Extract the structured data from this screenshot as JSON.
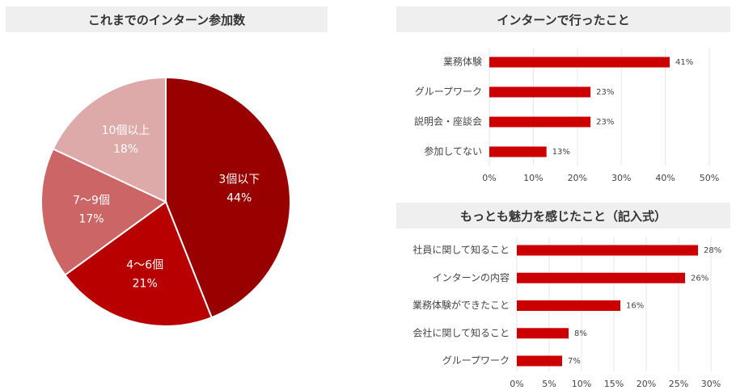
{
  "chart_data": [
    {
      "type": "pie",
      "title": "これまでのインターン参加数",
      "colors": [
        "#990000",
        "#b80000",
        "#cc6666",
        "#dda9a9"
      ],
      "slices": [
        {
          "label": "3個以下",
          "value": 44,
          "value_label": "44%"
        },
        {
          "label": "4〜6個",
          "value": 21,
          "value_label": "21%"
        },
        {
          "label": "7〜9個",
          "value": 17,
          "value_label": "17%"
        },
        {
          "label": "10個以上",
          "value": 18,
          "value_label": "18%"
        }
      ]
    },
    {
      "type": "bar",
      "orientation": "horizontal",
      "title": "インターンで行ったこと",
      "bar_color": "#cc0000",
      "categories": [
        "業務体験",
        "グループワーク",
        "説明会・座談会",
        "参加してない"
      ],
      "values": [
        41,
        23,
        23,
        13
      ],
      "value_labels": [
        "41%",
        "23%",
        "23%",
        "13%"
      ],
      "xlim": [
        0,
        50
      ],
      "ticks": [
        0,
        10,
        20,
        30,
        40,
        50
      ],
      "tick_labels": [
        "0%",
        "10%",
        "20%",
        "30%",
        "40%",
        "50%"
      ],
      "grid": true
    },
    {
      "type": "bar",
      "orientation": "horizontal",
      "title": "もっとも魅力を感じたこと（記入式）",
      "bar_color": "#cc0000",
      "categories": [
        "社員に関して知ること",
        "インターンの内容",
        "業務体験ができたこと",
        "会社に関して知ること",
        "グループワーク"
      ],
      "values": [
        28,
        26,
        16,
        8,
        7
      ],
      "value_labels": [
        "28%",
        "26%",
        "16%",
        "8%",
        "7%"
      ],
      "xlim": [
        0,
        30
      ],
      "ticks": [
        0,
        5,
        10,
        15,
        20,
        25,
        30
      ],
      "tick_labels": [
        "0%",
        "5%",
        "10%",
        "15%",
        "20%",
        "25%",
        "30%"
      ],
      "grid": true
    }
  ]
}
